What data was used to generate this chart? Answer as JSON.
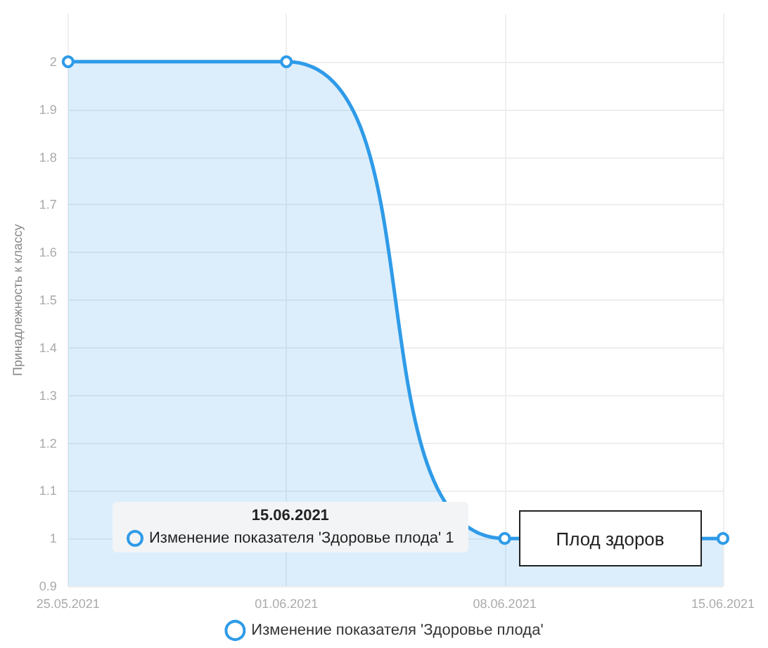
{
  "chart_data": {
    "type": "area",
    "ylabel": "Принадлежность к классу",
    "categories": [
      "25.05.2021",
      "01.06.2021",
      "08.06.2021",
      "15.06.2021"
    ],
    "series": [
      {
        "name": "Изменение показателя 'Здоровье плода'",
        "color": "#2f9be8",
        "values": [
          2,
          2,
          1,
          1
        ]
      }
    ],
    "ylim": [
      0.9,
      2.1
    ],
    "yticks": [
      0.9,
      1,
      1.1,
      1.2,
      1.3,
      1.4,
      1.5,
      1.6,
      1.7,
      1.8,
      1.9,
      2
    ],
    "grid": true,
    "legend": "bottom",
    "marker": "circle",
    "line_style": "solid",
    "annotations": [
      "15.06.2021",
      "Изменение показателя 'Здоровье плода' 1",
      {
        "text": "Плод здоров",
        "x": "08.06.2021",
        "y": 1
      }
    ]
  }
}
